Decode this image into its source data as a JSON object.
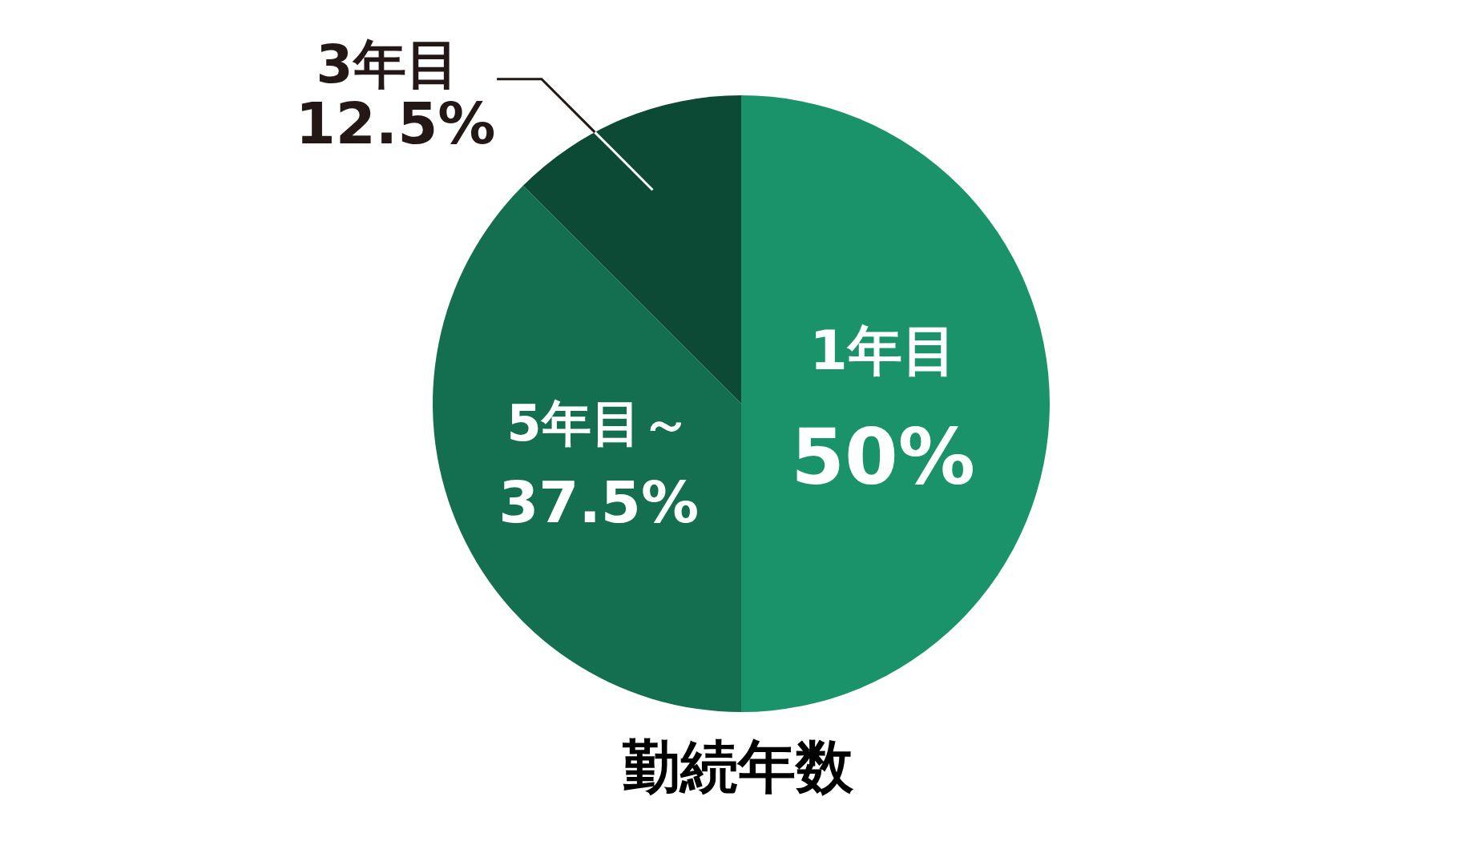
{
  "chart_data": {
    "type": "pie",
    "title": "勤続年数",
    "categories": [
      "1年目",
      "5年目～",
      "3年目"
    ],
    "values": [
      50,
      37.5,
      12.5
    ],
    "colors": [
      "#1a936b",
      "#136f50",
      "#0c4a35"
    ],
    "value_labels": [
      "50%",
      "37.5%",
      "12.5%"
    ]
  }
}
